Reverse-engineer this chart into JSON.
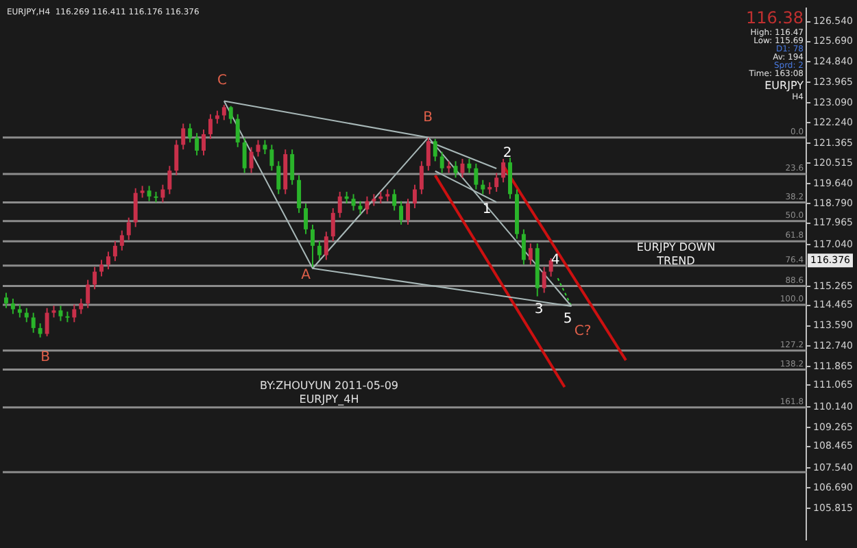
{
  "chart_data": {
    "type": "candlestick",
    "categories": [
      null,
      null,
      null,
      null,
      null,
      null,
      null,
      null,
      null,
      null,
      null,
      null,
      null,
      null,
      null,
      null,
      null,
      null,
      null,
      null,
      null,
      null,
      null,
      null,
      null,
      null,
      null,
      null,
      null,
      null,
      null,
      null,
      null,
      null,
      null,
      null,
      null,
      null,
      null,
      null,
      null,
      null,
      null,
      null,
      null,
      null,
      null,
      null,
      null,
      null,
      null,
      null,
      null,
      null,
      null,
      null,
      null,
      null,
      null,
      null,
      null,
      null,
      null,
      null,
      null,
      null,
      null,
      null,
      null,
      null,
      null,
      null,
      null,
      null,
      null,
      null,
      null,
      null,
      null,
      null,
      null,
      null,
      null,
      null,
      null,
      null,
      null,
      null,
      null,
      null,
      null,
      null,
      null,
      null,
      null,
      null,
      null,
      null,
      null,
      null,
      null,
      null,
      null,
      null,
      null,
      null,
      null,
      null,
      null,
      null,
      null,
      null,
      null,
      null,
      null,
      null,
      null,
      null
    ],
    "ohlc": [
      [
        114.8,
        115.0,
        114.35,
        114.55
      ],
      [
        114.55,
        114.75,
        114.1,
        114.3
      ],
      [
        114.3,
        114.5,
        113.95,
        114.15
      ],
      [
        114.15,
        114.35,
        113.75,
        113.95
      ],
      [
        113.95,
        114.15,
        113.3,
        113.5
      ],
      [
        113.5,
        113.7,
        113.1,
        113.25
      ],
      [
        113.25,
        114.35,
        113.15,
        114.15
      ],
      [
        114.15,
        114.45,
        113.95,
        114.25
      ],
      [
        114.25,
        114.45,
        113.8,
        114.0
      ],
      [
        114.0,
        114.2,
        113.75,
        113.95
      ],
      [
        113.95,
        114.5,
        113.75,
        114.3
      ],
      [
        114.3,
        114.75,
        114.1,
        114.55
      ],
      [
        114.55,
        115.55,
        114.35,
        115.35
      ],
      [
        115.35,
        116.1,
        115.15,
        115.9
      ],
      [
        115.9,
        116.4,
        115.7,
        116.2
      ],
      [
        116.2,
        116.75,
        116.0,
        116.55
      ],
      [
        116.55,
        117.2,
        116.35,
        117.0
      ],
      [
        117.0,
        117.65,
        116.8,
        117.45
      ],
      [
        117.45,
        118.2,
        117.25,
        118.0
      ],
      [
        118.0,
        119.45,
        117.8,
        119.25
      ],
      [
        119.25,
        119.55,
        119.05,
        119.35
      ],
      [
        119.35,
        119.55,
        118.9,
        119.1
      ],
      [
        119.1,
        119.3,
        118.85,
        119.05
      ],
      [
        119.05,
        119.6,
        118.85,
        119.4
      ],
      [
        119.4,
        120.4,
        119.2,
        120.2
      ],
      [
        120.2,
        121.5,
        120.0,
        121.3
      ],
      [
        121.3,
        122.2,
        121.1,
        122.0
      ],
      [
        122.0,
        122.2,
        121.4,
        121.6
      ],
      [
        121.6,
        121.8,
        120.85,
        121.05
      ],
      [
        121.05,
        121.95,
        120.85,
        121.75
      ],
      [
        121.75,
        122.6,
        121.55,
        122.4
      ],
      [
        122.4,
        122.75,
        122.2,
        122.55
      ],
      [
        122.55,
        123.0,
        122.35,
        122.9
      ],
      [
        122.9,
        122.95,
        122.2,
        122.4
      ],
      [
        122.4,
        122.6,
        121.2,
        121.4
      ],
      [
        121.4,
        121.6,
        120.1,
        120.3
      ],
      [
        120.3,
        121.2,
        120.1,
        121.0
      ],
      [
        121.0,
        121.5,
        120.8,
        121.3
      ],
      [
        121.3,
        121.5,
        120.9,
        121.1
      ],
      [
        121.1,
        121.3,
        120.2,
        120.4
      ],
      [
        120.4,
        120.6,
        119.2,
        119.4
      ],
      [
        119.4,
        121.1,
        119.2,
        120.9
      ],
      [
        120.9,
        121.1,
        119.6,
        119.8
      ],
      [
        119.8,
        120.0,
        118.4,
        118.6
      ],
      [
        118.6,
        118.8,
        117.5,
        117.7
      ],
      [
        117.7,
        117.9,
        116.1,
        117.0
      ],
      [
        117.0,
        117.2,
        116.4,
        116.6
      ],
      [
        116.6,
        117.6,
        116.4,
        117.4
      ],
      [
        117.4,
        118.6,
        117.2,
        118.4
      ],
      [
        118.4,
        119.3,
        118.2,
        119.1
      ],
      [
        119.1,
        119.3,
        118.8,
        119.0
      ],
      [
        119.0,
        119.2,
        118.5,
        118.7
      ],
      [
        118.7,
        118.9,
        118.35,
        118.55
      ],
      [
        118.55,
        119.1,
        118.35,
        118.9
      ],
      [
        118.9,
        119.2,
        118.7,
        119.0
      ],
      [
        119.0,
        119.3,
        118.8,
        119.1
      ],
      [
        119.1,
        119.4,
        118.9,
        119.2
      ],
      [
        119.2,
        119.4,
        118.5,
        118.7
      ],
      [
        118.7,
        118.9,
        117.9,
        118.1
      ],
      [
        118.1,
        119.0,
        117.9,
        118.8
      ],
      [
        118.8,
        119.6,
        118.6,
        119.4
      ],
      [
        119.4,
        120.6,
        119.2,
        120.4
      ],
      [
        120.4,
        121.6,
        120.2,
        121.45
      ],
      [
        121.45,
        121.55,
        120.6,
        120.8
      ],
      [
        120.8,
        121.0,
        120.1,
        120.3
      ],
      [
        120.3,
        120.6,
        120.1,
        120.4
      ],
      [
        120.4,
        120.6,
        119.9,
        120.1
      ],
      [
        120.1,
        120.7,
        119.9,
        120.5
      ],
      [
        120.5,
        120.7,
        120.1,
        120.3
      ],
      [
        120.3,
        120.5,
        119.4,
        119.6
      ],
      [
        119.6,
        119.8,
        119.2,
        119.4
      ],
      [
        119.4,
        119.7,
        119.2,
        119.5
      ],
      [
        119.5,
        120.1,
        119.3,
        119.9
      ],
      [
        119.9,
        120.7,
        119.7,
        120.55
      ],
      [
        120.55,
        120.75,
        119.0,
        119.2
      ],
      [
        119.2,
        119.4,
        117.3,
        117.5
      ],
      [
        117.5,
        117.7,
        116.2,
        116.4
      ],
      [
        116.4,
        117.1,
        116.2,
        116.9
      ],
      [
        116.9,
        117.1,
        114.85,
        115.2
      ],
      [
        115.2,
        116.1,
        115.0,
        115.9
      ],
      [
        115.9,
        116.47,
        115.69,
        116.38
      ],
      null,
      null,
      null,
      null,
      null,
      null,
      null,
      null,
      null,
      null,
      null,
      null,
      null,
      null,
      null,
      null,
      null,
      null,
      null,
      null,
      null,
      null,
      null,
      null,
      null,
      null,
      null,
      null,
      null,
      null,
      null,
      null,
      null,
      null,
      null,
      null,
      null
    ],
    "colors": [
      "#2ab42a",
      "#2ab42a",
      "#2ab42a",
      "#2ab42a",
      "#2ab42a",
      "#2ab42a",
      "#c8304a",
      "#c8304a",
      "#2ab42a",
      "#2ab42a",
      "#c8304a",
      "#c8304a",
      "#c8304a",
      "#c8304a",
      "#c8304a",
      "#c8304a",
      "#c8304a",
      "#c8304a",
      "#c8304a",
      "#c8304a",
      "#c8304a",
      "#2ab42a",
      "#2ab42a",
      "#c8304a",
      "#c8304a",
      "#c8304a",
      "#c8304a",
      "#2ab42a",
      "#2ab42a",
      "#c8304a",
      "#c8304a",
      "#c8304a",
      "#c8304a",
      "#2ab42a",
      "#2ab42a",
      "#2ab42a",
      "#c8304a",
      "#c8304a",
      "#2ab42a",
      "#2ab42a",
      "#2ab42a",
      "#c8304a",
      "#2ab42a",
      "#2ab42a",
      "#2ab42a",
      "#2ab42a",
      "#2ab42a",
      "#c8304a",
      "#c8304a",
      "#c8304a",
      "#2ab42a",
      "#2ab42a",
      "#2ab42a",
      "#c8304a",
      "#c8304a",
      "#c8304a",
      "#c8304a",
      "#2ab42a",
      "#2ab42a",
      "#c8304a",
      "#c8304a",
      "#c8304a",
      "#c8304a",
      "#2ab42a",
      "#2ab42a",
      "#c8304a",
      "#2ab42a",
      "#c8304a",
      "#2ab42a",
      "#2ab42a",
      "#2ab42a",
      "#c8304a",
      "#c8304a",
      "#c8304a",
      "#2ab42a",
      "#2ab42a",
      "#2ab42a",
      "#c8304a",
      "#2ab42a",
      "#c8304a",
      "#c8304a",
      null,
      null,
      null,
      null,
      null,
      null,
      null,
      null,
      null,
      null,
      null,
      null,
      null,
      null,
      null,
      null,
      null,
      null,
      null,
      null,
      null,
      null,
      null,
      null,
      null,
      null,
      null,
      null,
      null,
      null,
      null,
      null,
      null,
      null,
      null,
      null,
      null
    ],
    "series": [
      {
        "type": "line",
        "color": "#a8b8b8",
        "values": [
          null,
          null,
          null,
          null,
          null,
          null,
          null,
          null,
          null,
          null,
          null,
          null,
          null,
          null,
          null,
          null,
          null,
          null,
          null,
          null,
          null,
          null,
          null,
          null,
          null,
          null,
          null,
          null,
          null,
          null,
          null,
          null,
          123.16,
          null,
          null,
          null,
          null,
          null,
          null,
          null,
          null,
          null,
          null,
          null,
          null,
          116.04,
          null,
          null,
          null,
          null,
          null,
          null,
          null,
          null,
          null,
          null,
          null,
          null,
          null,
          null,
          null,
          null,
          121.61,
          null,
          null,
          null,
          null,
          null,
          null,
          null,
          null,
          null,
          null,
          null,
          null,
          null,
          null,
          null,
          null,
          null,
          null,
          null,
          null,
          null,
          null,
          null,
          null,
          null,
          null,
          null,
          null,
          null,
          null,
          null,
          null,
          null,
          null,
          null,
          null,
          null,
          null,
          null,
          null,
          null,
          null,
          null,
          null,
          null,
          null,
          null,
          null,
          null,
          null,
          null,
          null,
          null,
          null,
          null
        ]
      },
      {
        "type": "line",
        "color": "#a8b8b8",
        "values": [
          null,
          null,
          null,
          null,
          null,
          null,
          null,
          null,
          null,
          null,
          null,
          null,
          null,
          null,
          null,
          null,
          null,
          null,
          null,
          null,
          null,
          null,
          null,
          null,
          null,
          null,
          null,
          null,
          null,
          null,
          null,
          null,
          123.16,
          null,
          null,
          null,
          null,
          null,
          null,
          null,
          null,
          null,
          null,
          null,
          null,
          null,
          null,
          null,
          null,
          null,
          null,
          null,
          null,
          null,
          null,
          null,
          null,
          null,
          null,
          null,
          null,
          null,
          121.61,
          null,
          null,
          null,
          null,
          null,
          null,
          null,
          null,
          null,
          null,
          null,
          null,
          null,
          null,
          null,
          null,
          null,
          null,
          null,
          null,
          null,
          null,
          null,
          null,
          null,
          null,
          null,
          null,
          null,
          null,
          null,
          null,
          null,
          null,
          null,
          null,
          null,
          null,
          null,
          null,
          null,
          null,
          null,
          null,
          null,
          null,
          null,
          null,
          null,
          null,
          null,
          null,
          null,
          null,
          null
        ]
      },
      {
        "type": "line",
        "color": "#a8b8b8",
        "values": [
          null,
          null,
          null,
          null,
          null,
          null,
          null,
          null,
          null,
          null,
          null,
          null,
          null,
          null,
          null,
          null,
          null,
          null,
          null,
          null,
          null,
          null,
          null,
          null,
          null,
          null,
          null,
          null,
          null,
          null,
          null,
          null,
          null,
          null,
          null,
          null,
          null,
          null,
          null,
          null,
          null,
          null,
          null,
          null,
          null,
          116.04,
          null,
          null,
          null,
          null,
          null,
          null,
          null,
          null,
          null,
          null,
          null,
          null,
          null,
          null,
          null,
          null,
          null,
          null,
          null,
          null,
          null,
          null,
          null,
          null,
          null,
          null,
          null,
          null,
          null,
          null,
          null,
          null,
          null,
          null,
          null,
          null,
          null,
          114.43,
          null,
          null,
          null,
          null,
          null,
          null,
          null,
          null,
          null,
          null,
          null,
          null,
          null,
          null,
          null,
          null,
          null,
          null,
          null,
          null,
          null,
          null,
          null,
          null,
          null,
          null,
          null,
          null,
          null,
          null,
          null,
          null,
          null,
          null
        ]
      },
      {
        "type": "line",
        "color": "#a8b8b8",
        "values": [
          null,
          null,
          null,
          null,
          null,
          null,
          null,
          null,
          null,
          null,
          null,
          null,
          null,
          null,
          null,
          null,
          null,
          null,
          null,
          null,
          null,
          null,
          null,
          null,
          null,
          null,
          null,
          null,
          null,
          null,
          null,
          null,
          null,
          null,
          null,
          null,
          null,
          null,
          null,
          null,
          null,
          null,
          null,
          null,
          null,
          null,
          null,
          null,
          null,
          null,
          null,
          null,
          null,
          null,
          null,
          null,
          null,
          null,
          null,
          null,
          null,
          null,
          121.61,
          null,
          null,
          null,
          null,
          null,
          null,
          null,
          null,
          null,
          null,
          null,
          null,
          null,
          null,
          null,
          null,
          null,
          null,
          null,
          null,
          114.43,
          null,
          null,
          null,
          null,
          null,
          null,
          null,
          null,
          null,
          null,
          null,
          null,
          null,
          null,
          null,
          null,
          null,
          null,
          null,
          null,
          null,
          null,
          null,
          null,
          null,
          null,
          null,
          null,
          null,
          null,
          null,
          null,
          null,
          null
        ]
      },
      {
        "type": "line",
        "color": "#a8b8b8",
        "values": [
          null,
          null,
          null,
          null,
          null,
          null,
          null,
          null,
          null,
          null,
          null,
          null,
          null,
          null,
          null,
          null,
          null,
          null,
          null,
          null,
          null,
          null,
          null,
          null,
          null,
          null,
          null,
          null,
          null,
          null,
          null,
          null,
          null,
          null,
          null,
          null,
          null,
          null,
          null,
          null,
          null,
          null,
          null,
          null,
          null,
          null,
          null,
          null,
          null,
          null,
          null,
          null,
          null,
          null,
          null,
          null,
          null,
          null,
          null,
          null,
          null,
          null,
          121.44,
          null,
          null,
          null,
          null,
          null,
          null,
          null,
          null,
          null,
          120.29,
          null,
          null,
          null,
          null,
          null,
          null,
          null,
          null,
          null,
          null,
          null,
          null,
          null,
          null,
          null,
          null,
          null,
          null,
          null,
          null,
          null,
          null,
          null,
          null,
          null,
          null,
          null,
          null,
          null,
          null,
          null,
          null,
          null,
          null,
          null,
          null,
          null,
          null,
          null,
          null,
          null,
          null,
          null,
          null,
          null
        ]
      },
      {
        "type": "line",
        "color": "#a8b8b8",
        "values": [
          null,
          null,
          null,
          null,
          null,
          null,
          null,
          null,
          null,
          null,
          null,
          null,
          null,
          null,
          null,
          null,
          null,
          null,
          null,
          null,
          null,
          null,
          null,
          null,
          null,
          null,
          null,
          null,
          null,
          null,
          null,
          null,
          null,
          null,
          null,
          null,
          null,
          null,
          null,
          null,
          null,
          null,
          null,
          null,
          null,
          null,
          null,
          null,
          null,
          null,
          null,
          null,
          null,
          null,
          null,
          null,
          null,
          null,
          null,
          null,
          null,
          null,
          null,
          120.18,
          null,
          null,
          null,
          null,
          null,
          null,
          null,
          null,
          118.86,
          null,
          null,
          null,
          null,
          null,
          null,
          null,
          null,
          null,
          null,
          null,
          null,
          null,
          null,
          null,
          null,
          null,
          null,
          null,
          null,
          null,
          null,
          null,
          null,
          null,
          null,
          null,
          null,
          null,
          null,
          null,
          null,
          null,
          null,
          null,
          null,
          null,
          null,
          null,
          null,
          null,
          null,
          null,
          null,
          null
        ]
      },
      {
        "type": "line",
        "color": "#cc1010",
        "values": [
          null,
          null,
          null,
          null,
          null,
          null,
          null,
          null,
          null,
          null,
          null,
          null,
          null,
          null,
          null,
          null,
          null,
          null,
          null,
          null,
          null,
          null,
          null,
          null,
          null,
          null,
          null,
          null,
          null,
          null,
          null,
          null,
          null,
          null,
          null,
          null,
          null,
          null,
          null,
          null,
          null,
          null,
          null,
          null,
          null,
          null,
          null,
          null,
          null,
          null,
          null,
          null,
          null,
          null,
          null,
          null,
          null,
          null,
          null,
          null,
          null,
          null,
          null,
          120.0,
          null,
          null,
          null,
          null,
          null,
          null,
          null,
          null,
          null,
          null,
          null,
          null,
          null,
          null,
          null,
          null,
          null,
          null,
          110.99,
          null,
          null,
          null,
          null,
          null,
          null,
          null,
          null,
          null,
          null,
          null,
          null,
          null,
          null,
          null,
          null,
          null,
          null,
          null,
          null,
          null,
          null,
          null,
          null,
          null,
          null,
          null,
          null,
          null,
          null,
          null,
          null,
          null,
          null,
          null
        ]
      },
      {
        "type": "line",
        "color": "#cc1010",
        "values": [
          null,
          null,
          null,
          null,
          null,
          null,
          null,
          null,
          null,
          null,
          null,
          null,
          null,
          null,
          null,
          null,
          null,
          null,
          null,
          null,
          null,
          null,
          null,
          null,
          null,
          null,
          null,
          null,
          null,
          null,
          null,
          null,
          null,
          null,
          null,
          null,
          null,
          null,
          null,
          null,
          null,
          null,
          null,
          null,
          null,
          null,
          null,
          null,
          null,
          null,
          null,
          null,
          null,
          null,
          null,
          null,
          null,
          null,
          null,
          null,
          null,
          null,
          null,
          null,
          null,
          null,
          null,
          null,
          null,
          null,
          null,
          null,
          null,
          120.41,
          null,
          null,
          null,
          null,
          null,
          null,
          null,
          null,
          null,
          null,
          null,
          null,
          null,
          null,
          null,
          null,
          null,
          112.13,
          null,
          null,
          null,
          null,
          null,
          null,
          null,
          null,
          null,
          null,
          null,
          null,
          null,
          null,
          null,
          null,
          null,
          null,
          null,
          null,
          null,
          null,
          null,
          null,
          null,
          null
        ]
      },
      {
        "type": "line",
        "color": "#30d030",
        "line_style": "dashed",
        "values": [
          null,
          null,
          null,
          null,
          null,
          null,
          null,
          null,
          null,
          null,
          null,
          null,
          null,
          null,
          null,
          null,
          null,
          null,
          null,
          null,
          null,
          null,
          null,
          null,
          null,
          null,
          null,
          null,
          null,
          null,
          null,
          null,
          null,
          null,
          null,
          null,
          null,
          null,
          null,
          null,
          null,
          null,
          null,
          null,
          null,
          null,
          null,
          null,
          null,
          null,
          null,
          null,
          null,
          null,
          null,
          null,
          null,
          null,
          null,
          null,
          null,
          null,
          null,
          null,
          null,
          null,
          null,
          null,
          null,
          null,
          null,
          null,
          null,
          null,
          null,
          null,
          null,
          null,
          null,
          null,
          null,
          115.62,
          null,
          114.43,
          null,
          null,
          null,
          null,
          null,
          null,
          null,
          null,
          null,
          null,
          null,
          null,
          null,
          null,
          null,
          null,
          null,
          null,
          null,
          null,
          null,
          null,
          null,
          null,
          null,
          null,
          null,
          null,
          null,
          null,
          null,
          null,
          null,
          null
        ]
      }
    ],
    "ref_lines": [
      {
        "axis": "y",
        "value": 121.61,
        "color": "#8c8c8c"
      },
      {
        "axis": "y",
        "value": 120.06,
        "color": "#8c8c8c"
      },
      {
        "axis": "y",
        "value": 118.85,
        "color": "#8c8c8c"
      },
      {
        "axis": "y",
        "value": 118.05,
        "color": "#8c8c8c"
      },
      {
        "axis": "y",
        "value": 117.19,
        "color": "#8c8c8c"
      },
      {
        "axis": "y",
        "value": 116.16,
        "color": "#8c8c8c"
      },
      {
        "axis": "y",
        "value": 115.29,
        "color": "#8c8c8c"
      },
      {
        "axis": "y",
        "value": 114.49,
        "color": "#8c8c8c"
      },
      {
        "axis": "y",
        "value": 112.54,
        "color": "#8c8c8c"
      },
      {
        "axis": "y",
        "value": 111.73,
        "color": "#8c8c8c"
      },
      {
        "axis": "y",
        "value": 110.12,
        "color": "#8c8c8c"
      },
      {
        "axis": "y",
        "value": 107.37,
        "color": "#8c8c8c"
      }
    ],
    "annotations": [
      "B",
      "C",
      "A",
      "B",
      "1",
      "2",
      "3",
      "4",
      "5",
      "C?",
      {
        "text": "116.376",
        "y": 116.376
      },
      {
        "text": "0.0",
        "y": 121.61
      },
      {
        "text": "23.6",
        "y": 120.06
      },
      {
        "text": "38.2",
        "y": 118.85
      },
      {
        "text": "50.0",
        "y": 118.05
      },
      {
        "text": "61.8",
        "y": 117.19
      },
      {
        "text": "76.4",
        "y": 116.16
      },
      {
        "text": "88.6",
        "y": 115.29
      },
      {
        "text": "100.0",
        "y": 114.49
      },
      {
        "text": "127.2",
        "y": 112.54
      },
      {
        "text": "138.2",
        "y": 111.73
      },
      {
        "text": "161.8",
        "y": 110.12
      },
      "EURJPY,H4  116.269 116.411 116.176 116.376",
      "EURJPY DOWN\nTREND",
      "BY:ZHOUYUN 2011-05-09\nEURJPY_4H",
      "116.38",
      "High: 116.47",
      "Low: 115.69",
      "D1: 78",
      "Av: 194",
      "Sprd: 2",
      "Time: 163:08",
      "EURJPY",
      "H4"
    ],
    "ylim": [
      104.5,
      127.1
    ],
    "yticks": [
      {
        "value": 126.54,
        "label": "126.540"
      },
      {
        "value": 125.69,
        "label": "125.690"
      },
      {
        "value": 124.84,
        "label": "124.840"
      },
      123.965,
      {
        "value": 123.09,
        "label": "123.090"
      },
      {
        "value": 122.24,
        "label": "122.240"
      },
      121.365,
      120.515,
      {
        "value": 119.64,
        "label": "119.640"
      },
      {
        "value": 118.79,
        "label": "118.790"
      },
      117.965,
      {
        "value": 117.04,
        "label": "117.040"
      },
      115.265,
      114.465,
      {
        "value": 113.59,
        "label": "113.590"
      },
      {
        "value": 112.74,
        "label": "112.740"
      },
      111.865,
      111.065,
      {
        "value": 110.14,
        "label": "110.140"
      },
      109.265,
      108.465,
      {
        "value": 107.54,
        "label": "107.540"
      },
      {
        "value": 106.69,
        "label": "106.690"
      },
      105.815
    ],
    "tick_labels": "y",
    "grid": false,
    "legend": false
  }
}
